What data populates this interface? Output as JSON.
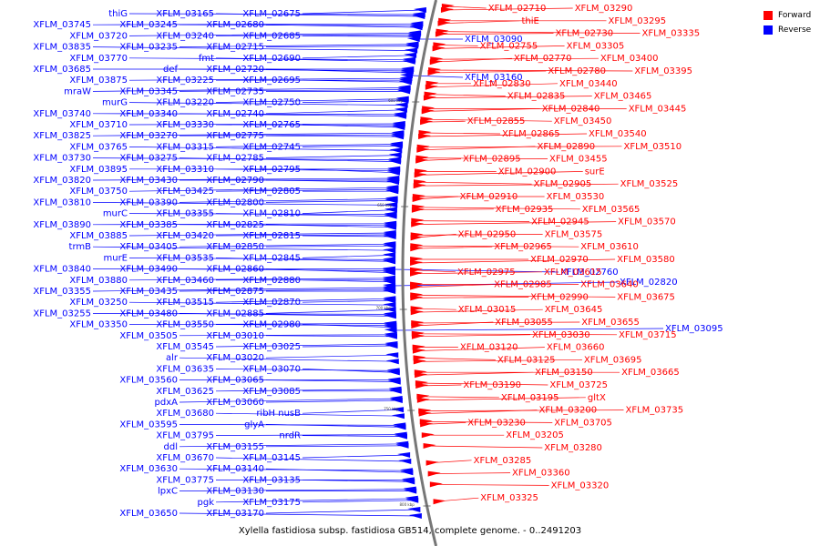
{
  "legend": {
    "forward": {
      "label": "Forward",
      "color": "#ff0000"
    },
    "reverse": {
      "label": "Reverse",
      "color": "#0000ff"
    }
  },
  "caption": "Xylella fastidiosa subsp. fastidiosa GB514, complete genome. - 0..2491203",
  "ticks": [
    "600 kbp",
    "650 kbp",
    "700 kbp",
    "750 kbp",
    "800 kbp"
  ],
  "forward_labels": [
    "XFLM_02710",
    "thiE",
    "XFLM_02730",
    "XFLM_02755",
    "XFLM_02770",
    "XFLM_02780",
    "XFLM_02830",
    "XFLM_02835",
    "XFLM_02840",
    "XFLM_02855",
    "XFLM_02865",
    "XFLM_02890",
    "XFLM_02895",
    "XFLM_02900",
    "XFLM_02905",
    "XFLM_02910",
    "XFLM_02935",
    "XFLM_02945",
    "XFLM_02950",
    "XFLM_02965",
    "XFLM_02970",
    "XFLM_02975",
    "XFLM_02985",
    "XFLM_02990",
    "XFLM_03015",
    "XFLM_03055",
    "XFLM_03030",
    "XFLM_03120",
    "XFLM_03125",
    "XFLM_03150",
    "XFLM_03190",
    "XFLM_03195",
    "XFLM_03200",
    "XFLM_03230",
    "XFLM_03205",
    "XFLM_03280",
    "XFLM_03285",
    "XFLM_03360",
    "XFLM_03320",
    "XFLM_03325",
    "XFLM_03290",
    "XFLM_03295",
    "XFLM_03335",
    "XFLM_03305",
    "XFLM_03400",
    "XFLM_03395",
    "XFLM_03440",
    "XFLM_03465",
    "XFLM_03445",
    "XFLM_03450",
    "XFLM_03540",
    "XFLM_03510",
    "XFLM_03455",
    "surE",
    "XFLM_03525",
    "XFLM_03530",
    "XFLM_03565",
    "XFLM_03570",
    "XFLM_03575",
    "XFLM_03610",
    "XFLM_03580",
    "XFLM_03615",
    "XFLM_03640",
    "XFLM_03675",
    "XFLM_03645",
    "XFLM_03655",
    "XFLM_03715",
    "XFLM_03660",
    "XFLM_03695",
    "XFLM_03665",
    "XFLM_03725",
    "gltX",
    "XFLM_03735",
    "XFLM_03705"
  ],
  "reverse_labels": [
    "XFLM_02675",
    "XFLM_02680",
    "XFLM_02685",
    "XFLM_02715",
    "XFLM_02690",
    "XFLM_02720",
    "XFLM_02695",
    "XFLM_02735",
    "XFLM_02750",
    "XFLM_02740",
    "XFLM_02765",
    "XFLM_02775",
    "XFLM_02745",
    "XFLM_02785",
    "XFLM_02795",
    "XFLM_02790",
    "XFLM_02805",
    "XFLM_02800",
    "XFLM_02810",
    "XFLM_02825",
    "XFLM_02815",
    "XFLM_02850",
    "XFLM_02845",
    "XFLM_02860",
    "XFLM_02880",
    "XFLM_02875",
    "XFLM_02870",
    "XFLM_02885",
    "XFLM_02980",
    "XFLM_03010",
    "XFLM_03025",
    "XFLM_03020",
    "XFLM_03070",
    "XFLM_03065",
    "XFLM_03085",
    "XFLM_03060",
    "ribH nusB",
    "glyA",
    "nrdR",
    "XFLM_03155",
    "XFLM_03145",
    "XFLM_03140",
    "XFLM_03135",
    "XFLM_03130",
    "XFLM_03175",
    "XFLM_03170",
    "XFLM_03165",
    "XFLM_03245",
    "XFLM_03240",
    "XFLM_03235",
    "fmt",
    "def",
    "XFLM_03225",
    "XFLM_03345",
    "XFLM_03220",
    "XFLM_03340",
    "XFLM_03330",
    "XFLM_03270",
    "XFLM_03315",
    "XFLM_03275",
    "XFLM_03310",
    "XFLM_03430",
    "XFLM_03425",
    "XFLM_03390",
    "XFLM_03355",
    "XFLM_03385",
    "XFLM_03420",
    "XFLM_03405",
    "XFLM_03535",
    "XFLM_03490",
    "XFLM_03460",
    "XFLM_03435",
    "XFLM_03515",
    "XFLM_03480",
    "XFLM_03550",
    "XFLM_03505",
    "XFLM_03545",
    "alr",
    "XFLM_03635",
    "XFLM_03560",
    "XFLM_03625",
    "pdxA",
    "XFLM_03680",
    "XFLM_03595",
    "XFLM_03795",
    "ddl",
    "XFLM_03670",
    "XFLM_03630",
    "XFLM_03775",
    "lpxC",
    "pgk",
    "XFLM_03650",
    "thiG",
    "XFLM_03745",
    "XFLM_03720",
    "XFLM_03835",
    "XFLM_03770",
    "XFLM_03685",
    "XFLM_03875",
    "mraW",
    "murG",
    "XFLM_03740",
    "XFLM_03710",
    "XFLM_03825",
    "XFLM_03765",
    "XFLM_03730",
    "XFLM_03895",
    "XFLM_03820",
    "XFLM_03750",
    "XFLM_03810",
    "murC",
    "XFLM_03890",
    "XFLM_03885",
    "trmB",
    "murE",
    "XFLM_03840",
    "XFLM_03880",
    "XFLM_03355",
    "XFLM_03250",
    "XFLM_03255",
    "XFLM_03350",
    "XFLM_02760",
    "XFLM_02820",
    "XFLM_03095",
    "XFLM_03090",
    "XFLM_03160"
  ]
}
